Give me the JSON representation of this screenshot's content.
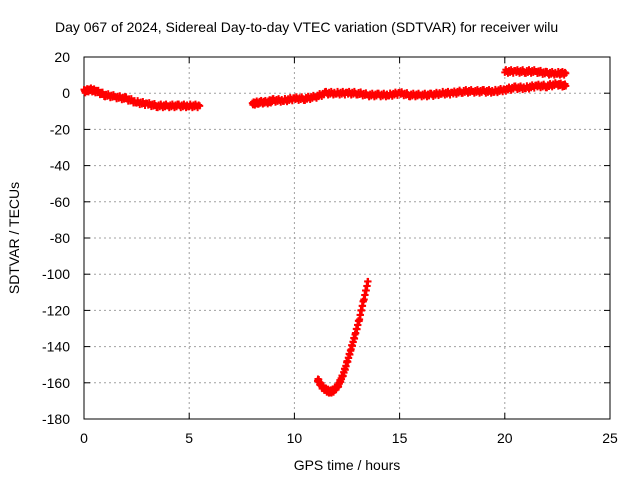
{
  "chart_data": {
    "type": "scatter",
    "title": "Day 067 of 2024, Sidereal Day-to-day VTEC variation (SDTVAR) for receiver wilu",
    "xlabel": "GPS time / hours",
    "ylabel": "SDTVAR / TECUs",
    "xlim": [
      0,
      25
    ],
    "ylim": [
      -180,
      20
    ],
    "xticks": [
      "0",
      "5",
      "10",
      "15",
      "20",
      "25"
    ],
    "yticks": [
      "20",
      "0",
      "-20",
      "-40",
      "-60",
      "-80",
      "-100",
      "-120",
      "-140",
      "-160",
      "-180"
    ],
    "grid": true,
    "marker_color": "#ff0000",
    "segments": [
      {
        "x": [
          0.0,
          0.3,
          0.6,
          1.0,
          1.5,
          2.0,
          2.5,
          3.0,
          3.5,
          4.0,
          4.5,
          5.0,
          5.5
        ],
        "y": [
          1,
          2,
          1,
          -1,
          -2,
          -3,
          -5,
          -6,
          -7,
          -7,
          -7,
          -7,
          -7
        ]
      },
      {
        "x": [
          8.0,
          8.3,
          8.7,
          9.0,
          9.5,
          10.0,
          10.5,
          11.0,
          11.5,
          12.0,
          12.5,
          13.0,
          13.5,
          14.0,
          14.5,
          15.0,
          15.5,
          16.0,
          16.5,
          17.0,
          17.5,
          18.0,
          18.5,
          19.0,
          19.5,
          20.0
        ],
        "y": [
          -6,
          -5,
          -5,
          -4,
          -4,
          -3,
          -3,
          -2,
          0,
          0,
          0,
          0,
          -1,
          -1,
          -1,
          0,
          -1,
          -1,
          -1,
          0,
          0,
          1,
          1,
          1,
          1,
          2
        ]
      },
      {
        "x": [
          20.0,
          20.5,
          21.0,
          21.5,
          22.0,
          22.5,
          22.9
        ],
        "y": [
          2,
          3,
          3,
          4,
          4,
          5,
          4
        ]
      },
      {
        "x": [
          20.0,
          20.5,
          21.0,
          21.5,
          22.0,
          22.5,
          22.9
        ],
        "y": [
          12,
          12,
          12,
          12,
          11,
          11,
          11
        ]
      },
      {
        "x": [
          11.1,
          11.3,
          11.5,
          11.7,
          11.9,
          12.1,
          12.3,
          12.5,
          12.7,
          12.9,
          13.1,
          13.3,
          13.5
        ],
        "y": [
          -158,
          -162,
          -164,
          -165,
          -164,
          -161,
          -156,
          -149,
          -141,
          -133,
          -124,
          -114,
          -104
        ]
      }
    ]
  }
}
